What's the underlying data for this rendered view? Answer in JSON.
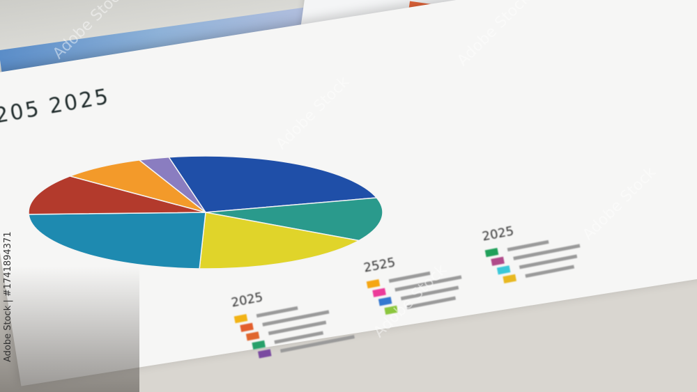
{
  "photo": {
    "title_text": "205 2025",
    "legends": [
      {
        "heading": "2025",
        "colors": [
          "#f2b315",
          "#e35e2c",
          "#e0662e",
          "#27a06a",
          "#7a4aa0"
        ]
      },
      {
        "heading": "2525",
        "colors": [
          "#f5a614",
          "#ec3b9a",
          "#3478d0",
          "#8cc63e"
        ]
      },
      {
        "heading": "2025",
        "colors": [
          "#20a05a",
          "#b04a8a",
          "#3bc8d8",
          "#e8b820"
        ]
      }
    ],
    "pie_colors": [
      "#1f4fa8",
      "#2a9a8c",
      "#e0d42a",
      "#1e8ab0",
      "#b33a2c",
      "#f39a2a",
      "#8a7dc0"
    ],
    "watermark": "Adobe Stock",
    "stock_id": "Adobe Stock | #1741894371"
  }
}
